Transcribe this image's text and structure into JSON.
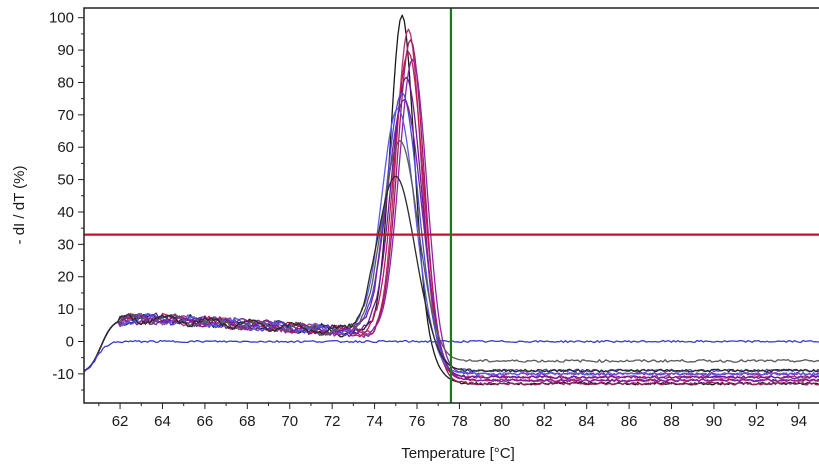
{
  "chart_data": {
    "type": "line",
    "title": "",
    "xlabel": "Temperature [°C]",
    "ylabel": "- dI / dT (%)",
    "xlim": [
      60.3,
      95.0
    ],
    "ylim": [
      -19,
      103
    ],
    "x_ticks": [
      62,
      64,
      66,
      68,
      70,
      72,
      74,
      76,
      78,
      80,
      82,
      84,
      86,
      88,
      90,
      92,
      94
    ],
    "y_ticks": [
      -10,
      0,
      10,
      20,
      30,
      40,
      50,
      60,
      70,
      80,
      90,
      100
    ],
    "grid": false,
    "legend": "none",
    "threshold_lines": {
      "horizontal": {
        "y": 33,
        "color": "#c8102e"
      },
      "vertical": {
        "x": 77.6,
        "color": "#1a7a1a"
      }
    },
    "series": [
      {
        "color": "#1a1a1a",
        "peak_x": 75.3,
        "peak_y": 99,
        "final_y": -13
      },
      {
        "color": "#b0306a",
        "peak_x": 75.6,
        "peak_y": 95,
        "final_y": -11
      },
      {
        "color": "#9a1e5e",
        "peak_x": 75.7,
        "peak_y": 92,
        "final_y": -13
      },
      {
        "color": "#8e24aa",
        "peak_x": 75.8,
        "peak_y": 86,
        "final_y": -10
      },
      {
        "color": "#c2185b",
        "peak_x": 75.6,
        "peak_y": 88,
        "final_y": -12
      },
      {
        "color": "#6a1b9a",
        "peak_x": 75.5,
        "peak_y": 80,
        "final_y": -11
      },
      {
        "color": "#4a4ad6",
        "peak_x": 75.3,
        "peak_y": 75,
        "final_y": -9
      },
      {
        "color": "#5c5ce0",
        "peak_x": 75.1,
        "peak_y": 70,
        "final_y": -10
      },
      {
        "color": "#7b1fa2",
        "peak_x": 75.4,
        "peak_y": 73,
        "final_y": -12
      },
      {
        "color": "#5a5a5a",
        "peak_x": 75.2,
        "peak_y": 60,
        "final_y": -6
      },
      {
        "color": "#2a2a2a",
        "peak_x": 75.0,
        "peak_y": 49,
        "final_y": -9
      },
      {
        "color": "#3b3bd0",
        "flat": true,
        "level_y": 0
      }
    ]
  }
}
